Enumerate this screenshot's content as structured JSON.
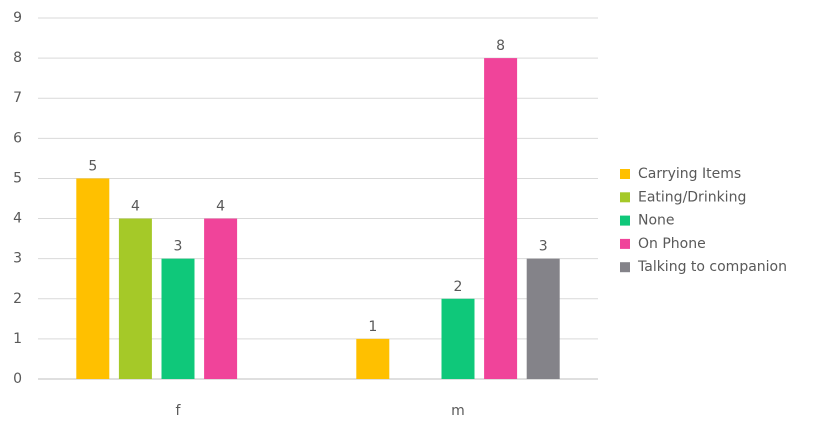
{
  "chart_data": {
    "type": "bar",
    "categories": [
      "f",
      "m"
    ],
    "series": [
      {
        "name": "Carrying Items",
        "color": "#FFC000",
        "values": [
          5,
          1
        ]
      },
      {
        "name": "Eating/Drinking",
        "color": "#A5C928",
        "values": [
          4,
          null
        ]
      },
      {
        "name": "None",
        "color": "#0FC87A",
        "values": [
          3,
          2
        ]
      },
      {
        "name": "On Phone",
        "color": "#F0449A",
        "values": [
          4,
          8
        ]
      },
      {
        "name": "Talking to companion",
        "color": "#848389",
        "values": [
          null,
          3
        ]
      }
    ],
    "ylim": [
      0,
      9
    ],
    "yticks": [
      0,
      1,
      2,
      3,
      4,
      5,
      6,
      7,
      8,
      9
    ],
    "grid": true,
    "legend": "right"
  }
}
